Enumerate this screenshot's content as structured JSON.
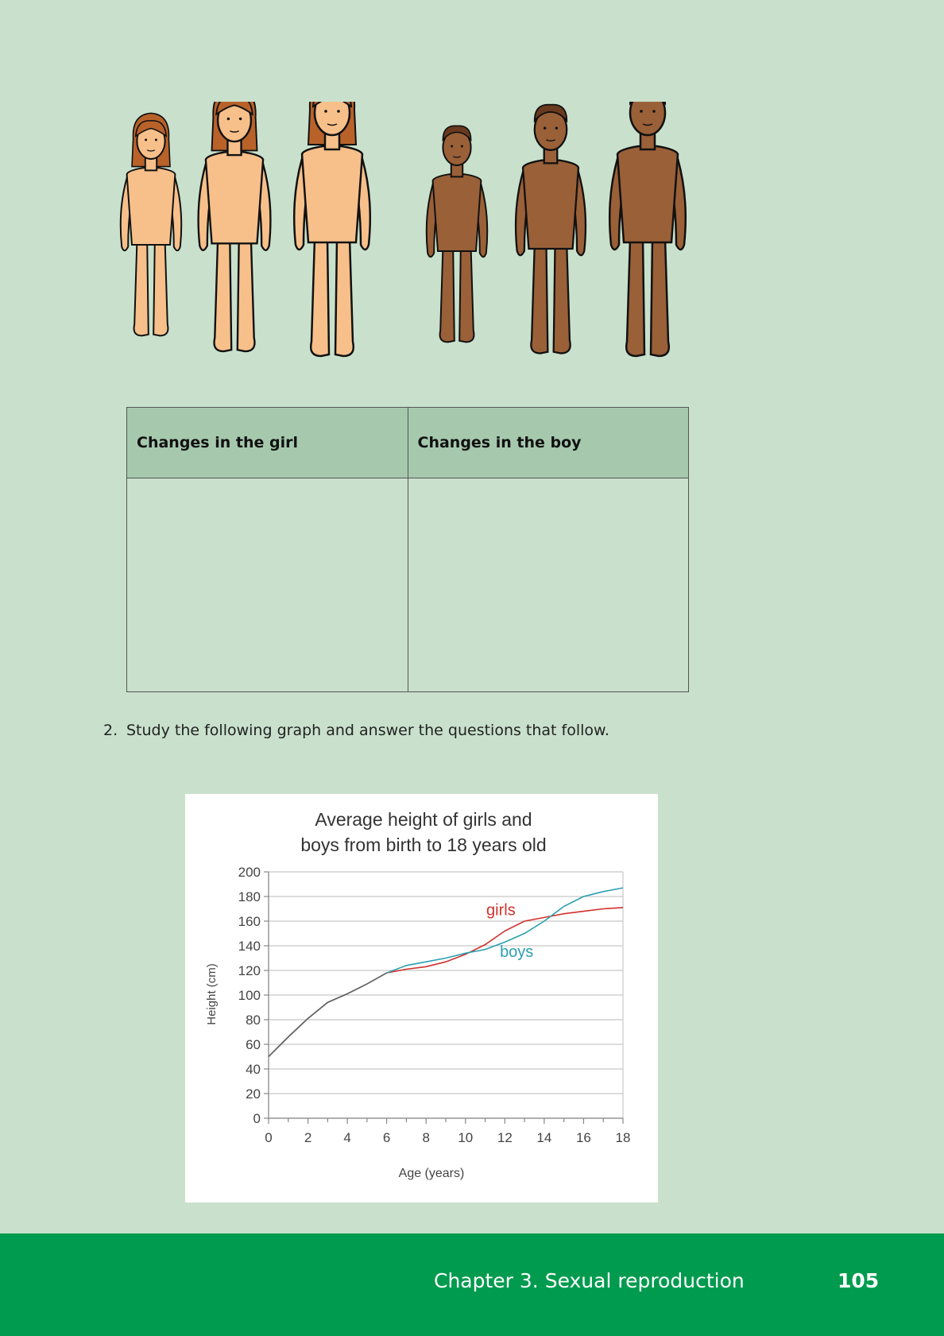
{
  "table": {
    "headers": [
      "Changes in the girl",
      "Changes in the boy"
    ]
  },
  "question": {
    "number": "2.",
    "text": "Study the following graph and answer the questions that follow."
  },
  "chart_data": {
    "type": "line",
    "title_lines": [
      "Average height of girls and",
      "boys from birth to 18 years old"
    ],
    "xlabel": "Age (years)",
    "ylabel": "Height (cm)",
    "xlim": [
      0,
      18
    ],
    "ylim": [
      0,
      200
    ],
    "x_ticks": [
      0,
      2,
      4,
      6,
      8,
      10,
      12,
      14,
      16,
      18
    ],
    "y_ticks": [
      0,
      20,
      40,
      60,
      80,
      100,
      120,
      140,
      160,
      180,
      200
    ],
    "grid": "horizontal",
    "shared": {
      "color": "#666666",
      "x": [
        0,
        1,
        2,
        3,
        4,
        5,
        6
      ],
      "y": [
        50,
        66,
        81,
        94,
        101,
        109,
        118
      ]
    },
    "series": [
      {
        "name": "girls",
        "color": "#d0312d",
        "x": [
          6,
          7,
          8,
          9,
          10,
          11,
          12,
          13,
          14,
          15,
          16,
          17,
          18
        ],
        "y": [
          118,
          121,
          123,
          127,
          133,
          141,
          152,
          160,
          163,
          166,
          168,
          170,
          171
        ]
      },
      {
        "name": "boys",
        "color": "#2a9fb0",
        "x": [
          6,
          7,
          8,
          9,
          10,
          11,
          12,
          13,
          14,
          15,
          16,
          17,
          18
        ],
        "y": [
          118,
          124,
          127,
          130,
          134,
          137,
          143,
          150,
          160,
          172,
          180,
          184,
          187
        ]
      }
    ],
    "series_labels": [
      {
        "text": "girls",
        "at": [
          11.8,
          165
        ]
      },
      {
        "text": "boys",
        "at": [
          12.6,
          131
        ]
      }
    ]
  },
  "footer": {
    "chapter": "Chapter 3.   Sexual reproduction",
    "page": "105"
  }
}
